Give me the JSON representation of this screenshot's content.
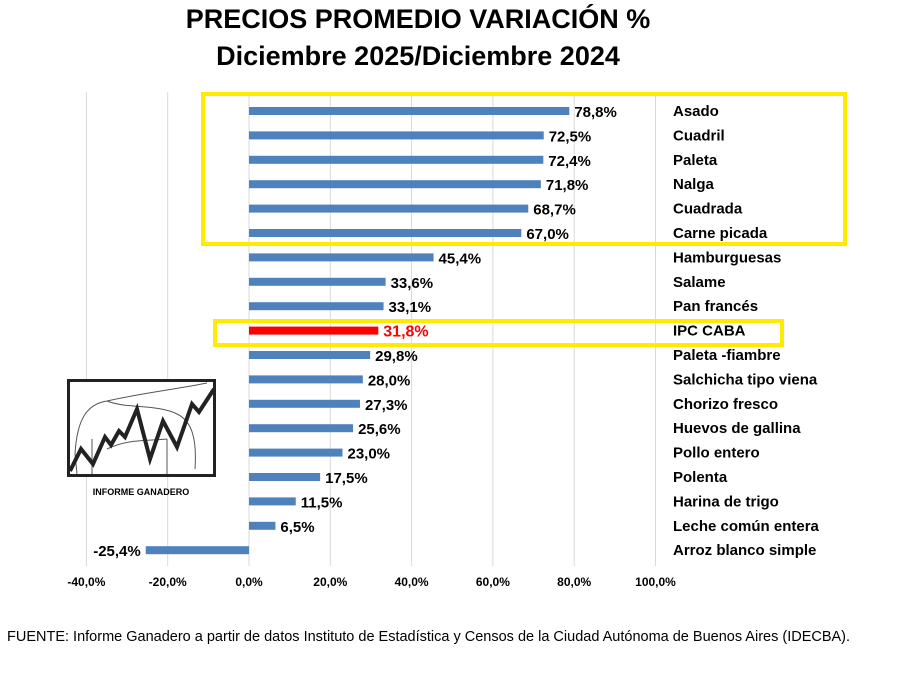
{
  "chart_data": {
    "type": "bar",
    "orientation": "horizontal",
    "title": "PRECIOS PROMEDIO  VARIACIÓN %",
    "subtitle": "Diciembre 2025/Diciembre 2024",
    "categories": [
      "Asado",
      "Cuadril",
      "Paleta",
      "Nalga",
      "Cuadrada",
      "Carne picada",
      "Hamburguesas",
      "Salame",
      "Pan francés",
      "IPC CABA",
      "Paleta -fiambre",
      "Salchicha tipo viena",
      "Chorizo fresco",
      "Huevos de gallina",
      "Pollo entero",
      "Polenta",
      "Harina de trigo",
      "Leche común entera",
      "Arroz blanco simple"
    ],
    "values": [
      78.8,
      72.5,
      72.4,
      71.8,
      68.7,
      67.0,
      45.4,
      33.6,
      33.1,
      31.8,
      29.8,
      28.0,
      27.3,
      25.6,
      23.0,
      17.5,
      11.5,
      6.5,
      -25.4
    ],
    "data_labels": [
      "78,8%",
      "72,5%",
      "72,4%",
      "71,8%",
      "68,7%",
      "67,0%",
      "45,4%",
      "33,6%",
      "33,1%",
      "31,8%",
      "29,8%",
      "28,0%",
      "27,3%",
      "25,6%",
      "23,0%",
      "17,5%",
      "11,5%",
      "6,5%",
      "-25,4%"
    ],
    "highlight_index": 9,
    "highlighted_groups": [
      [
        0,
        5
      ],
      [
        9,
        9
      ]
    ],
    "xlim": [
      -40,
      100
    ],
    "xticks": [
      -40,
      -20,
      0,
      20,
      40,
      60,
      80,
      100
    ],
    "xtick_labels": [
      "-40,0%",
      "-20,0%",
      "0,0%",
      "20,0%",
      "40,0%",
      "60,0%",
      "80,0%",
      "100,0%"
    ],
    "grid": "vertical",
    "xlabel": "",
    "ylabel": "",
    "colors": {
      "bar": "#4f81bd",
      "highlight": "#ff0000",
      "box": "#ffea00",
      "grid": "#d9d9d9"
    }
  },
  "logo": {
    "caption": "INFORME GANADERO"
  },
  "footer": "FUENTE: Informe Ganadero a partir de datos Instituto de Estadística y Censos de la Ciudad Autónoma de Buenos Aires (IDECBA)."
}
